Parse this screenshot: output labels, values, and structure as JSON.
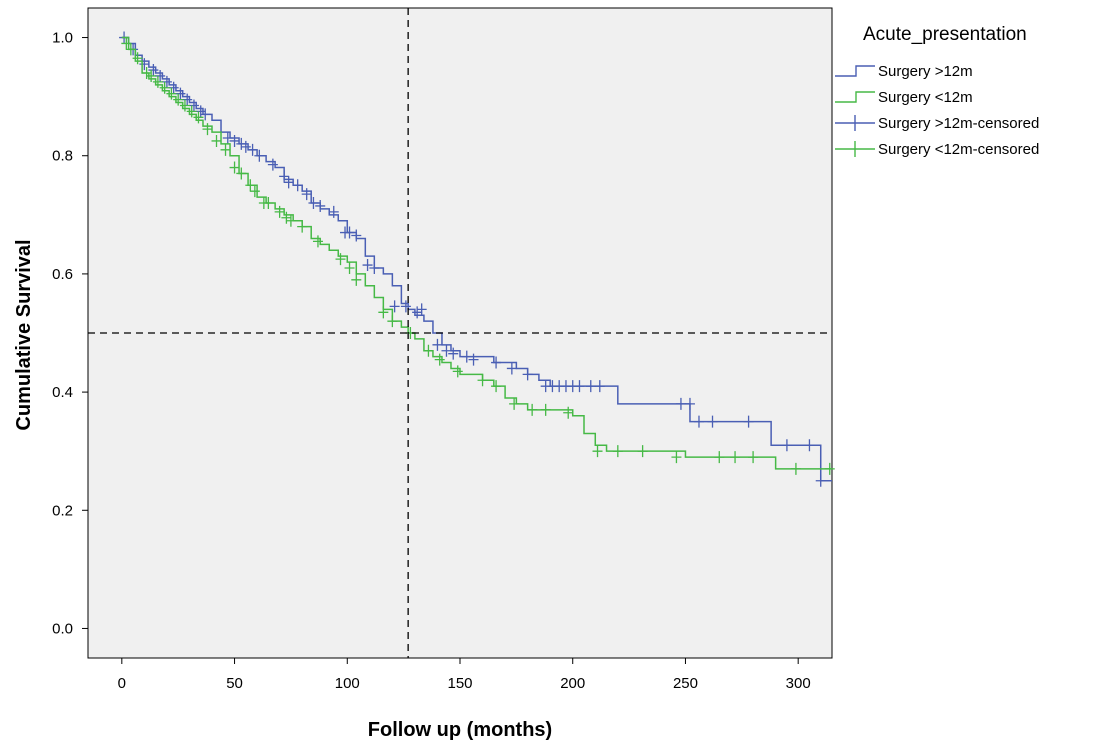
{
  "chart_data": {
    "type": "line",
    "subtype": "kaplan-meier-step",
    "xlabel": "Follow up (months)",
    "ylabel": "Cumulative Survival",
    "xlim": [
      -15,
      315
    ],
    "ylim": [
      -0.05,
      1.05
    ],
    "xticks": [
      0,
      50,
      100,
      150,
      200,
      250,
      300
    ],
    "yticks": [
      0.0,
      0.2,
      0.4,
      0.6,
      0.8,
      1.0
    ],
    "xtick_labels": [
      "0",
      "50",
      "100",
      "150",
      "200",
      "250",
      "300"
    ],
    "ytick_labels": [
      "0.0",
      "0.2",
      "0.4",
      "0.6",
      "0.8",
      "1.0"
    ],
    "plot_background": "#f0f0f0",
    "grid": false,
    "legend": {
      "title": "Acute_presentation",
      "placement": "right",
      "entries": [
        {
          "label": "Surgery >12m",
          "kind": "line",
          "color": "#4a5fb4"
        },
        {
          "label": "Surgery <12m",
          "kind": "line",
          "color": "#46b946"
        },
        {
          "label": "Surgery >12m-censored",
          "kind": "censor",
          "color": "#4a5fb4"
        },
        {
          "label": "Surgery <12m-censored",
          "kind": "censor",
          "color": "#46b946"
        }
      ]
    },
    "reference_lines": [
      {
        "orientation": "vertical",
        "x": 127
      },
      {
        "orientation": "horizontal",
        "y": 0.5
      }
    ],
    "series": [
      {
        "name": "Surgery >12m",
        "color": "#4a5fb4",
        "x": [
          0,
          3,
          6,
          9,
          12,
          15,
          18,
          21,
          24,
          27,
          30,
          33,
          36,
          40,
          44,
          48,
          52,
          56,
          60,
          64,
          68,
          72,
          76,
          80,
          84,
          88,
          92,
          96,
          100,
          104,
          108,
          112,
          116,
          120,
          124,
          127,
          130,
          134,
          138,
          142,
          146,
          150,
          155,
          160,
          165,
          170,
          175,
          180,
          185,
          190,
          195,
          200,
          205,
          210,
          215,
          220,
          230,
          240,
          245,
          252,
          256,
          262,
          270,
          280,
          288,
          295,
          305,
          310,
          315
        ],
        "y": [
          1.0,
          0.99,
          0.97,
          0.96,
          0.95,
          0.94,
          0.93,
          0.92,
          0.91,
          0.9,
          0.89,
          0.88,
          0.87,
          0.86,
          0.84,
          0.83,
          0.82,
          0.81,
          0.8,
          0.79,
          0.78,
          0.76,
          0.75,
          0.74,
          0.72,
          0.71,
          0.7,
          0.69,
          0.67,
          0.66,
          0.63,
          0.61,
          0.6,
          0.58,
          0.55,
          0.54,
          0.53,
          0.52,
          0.5,
          0.48,
          0.47,
          0.46,
          0.46,
          0.46,
          0.45,
          0.45,
          0.44,
          0.43,
          0.42,
          0.41,
          0.41,
          0.41,
          0.41,
          0.41,
          0.41,
          0.38,
          0.38,
          0.38,
          0.38,
          0.35,
          0.35,
          0.35,
          0.35,
          0.35,
          0.31,
          0.31,
          0.31,
          0.25,
          0.25
        ],
        "censored": [
          [
            1,
            1.0
          ],
          [
            5,
            0.98
          ],
          [
            10,
            0.955
          ],
          [
            14,
            0.945
          ],
          [
            17,
            0.935
          ],
          [
            20,
            0.925
          ],
          [
            23,
            0.915
          ],
          [
            26,
            0.905
          ],
          [
            29,
            0.895
          ],
          [
            32,
            0.885
          ],
          [
            35,
            0.875
          ],
          [
            37,
            0.87
          ],
          [
            47,
            0.83
          ],
          [
            50,
            0.825
          ],
          [
            53,
            0.82
          ],
          [
            55,
            0.815
          ],
          [
            58,
            0.81
          ],
          [
            61,
            0.8
          ],
          [
            67,
            0.785
          ],
          [
            72,
            0.765
          ],
          [
            74,
            0.755
          ],
          [
            78,
            0.75
          ],
          [
            82,
            0.735
          ],
          [
            85,
            0.72
          ],
          [
            88,
            0.715
          ],
          [
            94,
            0.705
          ],
          [
            99,
            0.67
          ],
          [
            101,
            0.67
          ],
          [
            104,
            0.665
          ],
          [
            109,
            0.615
          ],
          [
            112,
            0.61
          ],
          [
            121,
            0.545
          ],
          [
            126,
            0.545
          ],
          [
            131,
            0.535
          ],
          [
            133,
            0.54
          ],
          [
            140,
            0.48
          ],
          [
            144,
            0.47
          ],
          [
            147,
            0.465
          ],
          [
            153,
            0.46
          ],
          [
            156,
            0.455
          ],
          [
            166,
            0.45
          ],
          [
            173,
            0.44
          ],
          [
            180,
            0.43
          ],
          [
            188,
            0.41
          ],
          [
            191,
            0.41
          ],
          [
            194,
            0.41
          ],
          [
            197,
            0.41
          ],
          [
            200,
            0.41
          ],
          [
            203,
            0.41
          ],
          [
            208,
            0.41
          ],
          [
            212,
            0.41
          ],
          [
            248,
            0.38
          ],
          [
            252,
            0.38
          ],
          [
            256,
            0.35
          ],
          [
            262,
            0.35
          ],
          [
            278,
            0.35
          ],
          [
            295,
            0.31
          ],
          [
            305,
            0.31
          ],
          [
            310,
            0.25
          ]
        ]
      },
      {
        "name": "Surgery <12m",
        "color": "#46b946",
        "x": [
          0,
          3,
          6,
          9,
          12,
          15,
          18,
          21,
          24,
          27,
          30,
          33,
          36,
          40,
          44,
          48,
          52,
          56,
          60,
          64,
          68,
          72,
          76,
          80,
          84,
          88,
          92,
          96,
          100,
          104,
          108,
          112,
          116,
          120,
          124,
          127,
          130,
          134,
          138,
          142,
          146,
          150,
          155,
          160,
          165,
          170,
          175,
          180,
          185,
          190,
          195,
          200,
          205,
          210,
          215,
          220,
          230,
          240,
          250,
          260,
          270,
          280,
          290,
          300,
          310,
          315
        ],
        "y": [
          1.0,
          0.98,
          0.96,
          0.94,
          0.93,
          0.92,
          0.91,
          0.9,
          0.89,
          0.88,
          0.87,
          0.86,
          0.85,
          0.84,
          0.82,
          0.8,
          0.77,
          0.75,
          0.73,
          0.72,
          0.71,
          0.7,
          0.69,
          0.68,
          0.66,
          0.65,
          0.64,
          0.63,
          0.62,
          0.6,
          0.58,
          0.56,
          0.54,
          0.52,
          0.51,
          0.5,
          0.49,
          0.47,
          0.46,
          0.45,
          0.44,
          0.43,
          0.43,
          0.42,
          0.41,
          0.39,
          0.38,
          0.37,
          0.37,
          0.37,
          0.37,
          0.36,
          0.33,
          0.31,
          0.3,
          0.3,
          0.3,
          0.3,
          0.29,
          0.29,
          0.29,
          0.29,
          0.27,
          0.27,
          0.27,
          0.27
        ],
        "censored": [
          [
            2,
            0.99
          ],
          [
            4,
            0.98
          ],
          [
            7,
            0.965
          ],
          [
            11,
            0.94
          ],
          [
            13,
            0.935
          ],
          [
            16,
            0.925
          ],
          [
            19,
            0.915
          ],
          [
            22,
            0.905
          ],
          [
            25,
            0.895
          ],
          [
            28,
            0.885
          ],
          [
            31,
            0.875
          ],
          [
            34,
            0.865
          ],
          [
            38,
            0.845
          ],
          [
            42,
            0.825
          ],
          [
            46,
            0.81
          ],
          [
            50,
            0.78
          ],
          [
            53,
            0.77
          ],
          [
            57,
            0.75
          ],
          [
            59,
            0.74
          ],
          [
            63,
            0.72
          ],
          [
            65,
            0.72
          ],
          [
            70,
            0.705
          ],
          [
            73,
            0.695
          ],
          [
            75,
            0.69
          ],
          [
            80,
            0.68
          ],
          [
            87,
            0.655
          ],
          [
            97,
            0.625
          ],
          [
            101,
            0.61
          ],
          [
            104,
            0.59
          ],
          [
            116,
            0.535
          ],
          [
            120,
            0.52
          ],
          [
            128,
            0.5
          ],
          [
            136,
            0.47
          ],
          [
            141,
            0.455
          ],
          [
            149,
            0.435
          ],
          [
            160,
            0.42
          ],
          [
            166,
            0.41
          ],
          [
            174,
            0.38
          ],
          [
            182,
            0.37
          ],
          [
            188,
            0.37
          ],
          [
            198,
            0.365
          ],
          [
            211,
            0.3
          ],
          [
            220,
            0.3
          ],
          [
            231,
            0.3
          ],
          [
            246,
            0.29
          ],
          [
            265,
            0.29
          ],
          [
            272,
            0.29
          ],
          [
            280,
            0.29
          ],
          [
            299,
            0.27
          ],
          [
            314,
            0.27
          ]
        ]
      }
    ]
  }
}
